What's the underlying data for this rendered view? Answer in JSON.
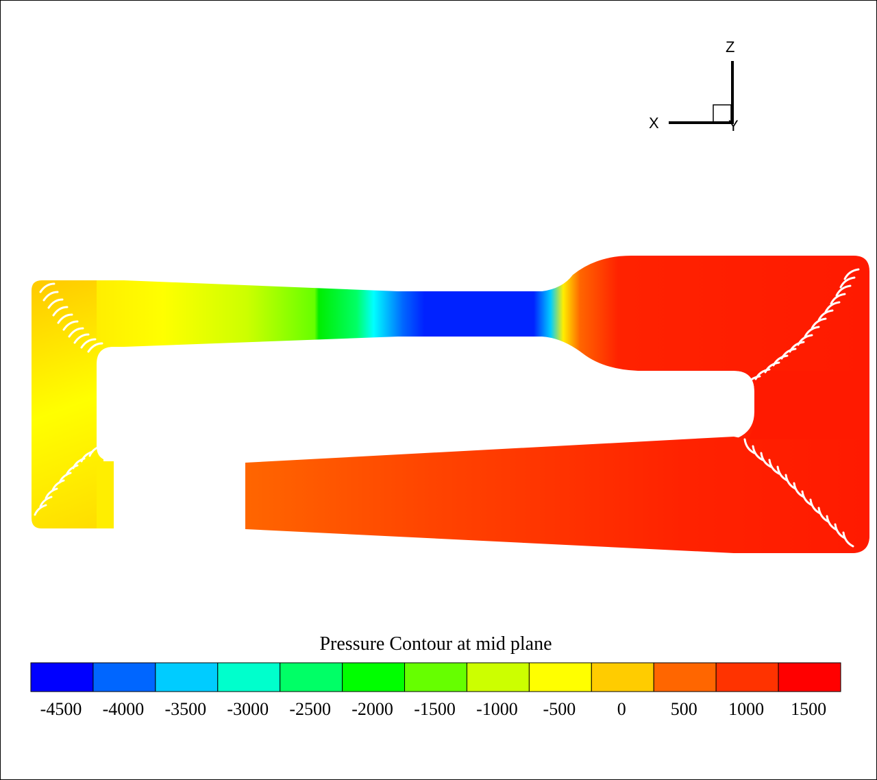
{
  "plot": {
    "colorbar_title": "Pressure Contour at mid plane",
    "colorbar_levels": [
      -4500,
      -4000,
      -3500,
      -3000,
      -2500,
      -2000,
      -1500,
      -1000,
      -500,
      0,
      500,
      1000,
      1500
    ],
    "colorbar_tick_labels": [
      "-4500",
      "-4000",
      "-3500",
      "-3000",
      "-2500",
      "-2000",
      "-1500",
      "-1000",
      "-500",
      "0",
      "500",
      "1000",
      "1500"
    ],
    "colormap": [
      "#0000ff",
      "#0066ff",
      "#00ccff",
      "#00ffcc",
      "#00ff66",
      "#00ff00",
      "#66ff00",
      "#ccff00",
      "#ffff00",
      "#ffcc00",
      "#ff6600",
      "#ff3300",
      "#ff0000"
    ]
  },
  "axes_triad": {
    "z_label": "Z",
    "x_label": "X",
    "y_label": "Y"
  }
}
